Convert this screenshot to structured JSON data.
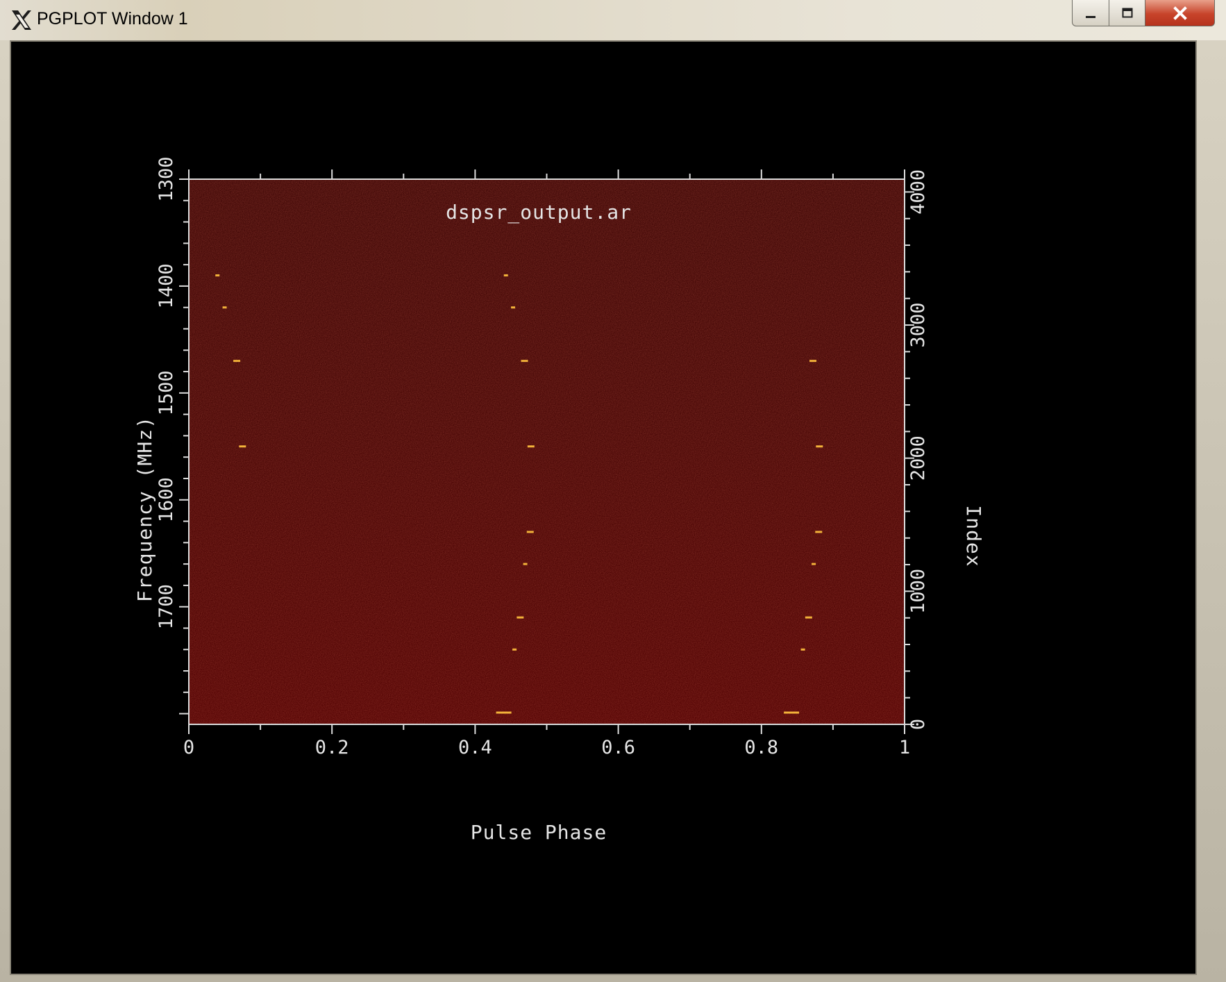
{
  "window": {
    "title": "PGPLOT Window 1",
    "icons": {
      "app": "x11-icon",
      "minimize": "minimize-icon",
      "maximize": "maximize-icon",
      "close": "close-icon"
    },
    "colors": {
      "plot_background": "#000000",
      "axes": "#dcdcdc",
      "field": "#4e0403",
      "pulse": "#f2b23a"
    }
  },
  "chart_data": {
    "type": "heatmap",
    "title": "dspsr_output.ar",
    "xlabel": "Pulse Phase",
    "ylabel": "Frequency (MHz)",
    "y2label": "Index",
    "xlim": [
      0,
      1
    ],
    "ylim": [
      1300,
      1810
    ],
    "y2lim": [
      0,
      4096
    ],
    "x_ticks": [
      "0",
      "0.2",
      "0.4",
      "0.6",
      "0.8",
      "1"
    ],
    "y_ticks": [
      "1300",
      "1400",
      "1500",
      "1600",
      "1700"
    ],
    "y2_ticks": [
      "0",
      "1000",
      "2000",
      "3000",
      "4000"
    ],
    "pulses": [
      {
        "freq": 1390,
        "phases": [
          0.04,
          0.443
        ]
      },
      {
        "freq": 1420,
        "phases": [
          0.05,
          0.453
        ]
      },
      {
        "freq": 1470,
        "phases": [
          0.067,
          0.469,
          0.872
        ]
      },
      {
        "freq": 1550,
        "phases": [
          0.075,
          0.478,
          0.881
        ]
      },
      {
        "freq": 1630,
        "phases": [
          0.477,
          0.88
        ]
      },
      {
        "freq": 1660,
        "phases": [
          0.47,
          0.873
        ]
      },
      {
        "freq": 1710,
        "phases": [
          0.463,
          0.866
        ]
      },
      {
        "freq": 1740,
        "phases": [
          0.455,
          0.858
        ]
      },
      {
        "freq": 1799,
        "phases": [
          0.44,
          0.842
        ]
      }
    ]
  }
}
